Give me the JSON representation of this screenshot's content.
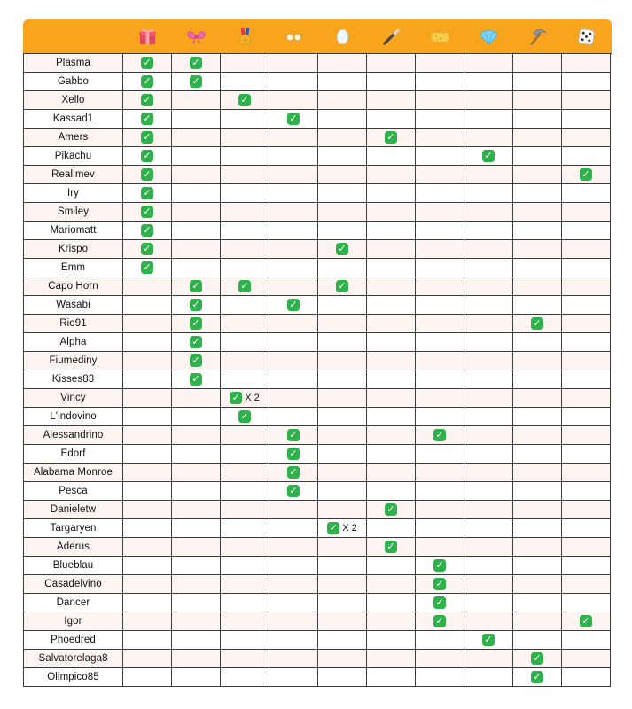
{
  "table": {
    "colors": {
      "header": "#F8A41D",
      "check": "#2FB14C",
      "row_alt": "#FCF4F1",
      "border": "#3C3C3C"
    },
    "multiplier_label": "X 2",
    "columns": [
      {
        "icon": "gift-icon"
      },
      {
        "icon": "bow-icon"
      },
      {
        "icon": "medal-icon"
      },
      {
        "icon": "goggles-icon"
      },
      {
        "icon": "white-gem-icon"
      },
      {
        "icon": "magic-wand-icon"
      },
      {
        "icon": "sponge-icon"
      },
      {
        "icon": "diamond-icon"
      },
      {
        "icon": "pickaxe-icon"
      },
      {
        "icon": "dice-icon"
      }
    ],
    "rows": [
      {
        "name": "Plasma",
        "checks": [
          1,
          1,
          0,
          0,
          0,
          0,
          0,
          0,
          0,
          0
        ]
      },
      {
        "name": "Gabbo",
        "checks": [
          1,
          1,
          0,
          0,
          0,
          0,
          0,
          0,
          0,
          0
        ]
      },
      {
        "name": "Xello",
        "checks": [
          1,
          0,
          1,
          0,
          0,
          0,
          0,
          0,
          0,
          0
        ]
      },
      {
        "name": "Kassad1",
        "checks": [
          1,
          0,
          0,
          1,
          0,
          0,
          0,
          0,
          0,
          0
        ]
      },
      {
        "name": "Amers",
        "checks": [
          1,
          0,
          0,
          0,
          0,
          1,
          0,
          0,
          0,
          0
        ]
      },
      {
        "name": "Pikachu",
        "checks": [
          1,
          0,
          0,
          0,
          0,
          0,
          0,
          1,
          0,
          0
        ]
      },
      {
        "name": "Realimev",
        "checks": [
          1,
          0,
          0,
          0,
          0,
          0,
          0,
          0,
          0,
          1
        ]
      },
      {
        "name": "Iry",
        "checks": [
          1,
          0,
          0,
          0,
          0,
          0,
          0,
          0,
          0,
          0
        ]
      },
      {
        "name": "Smiley",
        "checks": [
          1,
          0,
          0,
          0,
          0,
          0,
          0,
          0,
          0,
          0
        ]
      },
      {
        "name": "Mariomatt",
        "checks": [
          1,
          0,
          0,
          0,
          0,
          0,
          0,
          0,
          0,
          0
        ]
      },
      {
        "name": "Krispo",
        "checks": [
          1,
          0,
          0,
          0,
          1,
          0,
          0,
          0,
          0,
          0
        ]
      },
      {
        "name": "Emm",
        "checks": [
          1,
          0,
          0,
          0,
          0,
          0,
          0,
          0,
          0,
          0
        ]
      },
      {
        "name": "Capo Horn",
        "checks": [
          0,
          1,
          1,
          0,
          1,
          0,
          0,
          0,
          0,
          0
        ]
      },
      {
        "name": "Wasabi",
        "checks": [
          0,
          1,
          0,
          1,
          0,
          0,
          0,
          0,
          0,
          0
        ]
      },
      {
        "name": "Rio91",
        "checks": [
          0,
          1,
          0,
          0,
          0,
          0,
          0,
          0,
          1,
          0
        ]
      },
      {
        "name": "Alpha",
        "checks": [
          0,
          1,
          0,
          0,
          0,
          0,
          0,
          0,
          0,
          0
        ]
      },
      {
        "name": "Fiumediny",
        "checks": [
          0,
          1,
          0,
          0,
          0,
          0,
          0,
          0,
          0,
          0
        ]
      },
      {
        "name": "Kisses83",
        "checks": [
          0,
          1,
          0,
          0,
          0,
          0,
          0,
          0,
          0,
          0
        ]
      },
      {
        "name": "Vincy",
        "checks": [
          0,
          0,
          2,
          0,
          0,
          0,
          0,
          0,
          0,
          0
        ]
      },
      {
        "name": "L'indovino",
        "checks": [
          0,
          0,
          1,
          0,
          0,
          0,
          0,
          0,
          0,
          0
        ]
      },
      {
        "name": "Alessandrino",
        "checks": [
          0,
          0,
          0,
          1,
          0,
          0,
          1,
          0,
          0,
          0
        ]
      },
      {
        "name": "Edorf",
        "checks": [
          0,
          0,
          0,
          1,
          0,
          0,
          0,
          0,
          0,
          0
        ]
      },
      {
        "name": "Alabama Monroe",
        "checks": [
          0,
          0,
          0,
          1,
          0,
          0,
          0,
          0,
          0,
          0
        ]
      },
      {
        "name": "Pesca",
        "checks": [
          0,
          0,
          0,
          1,
          0,
          0,
          0,
          0,
          0,
          0
        ]
      },
      {
        "name": "Danieletw",
        "checks": [
          0,
          0,
          0,
          0,
          0,
          1,
          0,
          0,
          0,
          0
        ]
      },
      {
        "name": "Targaryen",
        "checks": [
          0,
          0,
          0,
          0,
          2,
          0,
          0,
          0,
          0,
          0
        ]
      },
      {
        "name": "Aderus",
        "checks": [
          0,
          0,
          0,
          0,
          0,
          1,
          0,
          0,
          0,
          0
        ]
      },
      {
        "name": "Blueblau",
        "checks": [
          0,
          0,
          0,
          0,
          0,
          0,
          1,
          0,
          0,
          0
        ]
      },
      {
        "name": "Casadelvino",
        "checks": [
          0,
          0,
          0,
          0,
          0,
          0,
          1,
          0,
          0,
          0
        ]
      },
      {
        "name": "Dancer",
        "checks": [
          0,
          0,
          0,
          0,
          0,
          0,
          1,
          0,
          0,
          0
        ]
      },
      {
        "name": "Igor",
        "checks": [
          0,
          0,
          0,
          0,
          0,
          0,
          1,
          0,
          0,
          1
        ]
      },
      {
        "name": "Phoedred",
        "checks": [
          0,
          0,
          0,
          0,
          0,
          0,
          0,
          1,
          0,
          0
        ]
      },
      {
        "name": "Salvatorelaga8",
        "checks": [
          0,
          0,
          0,
          0,
          0,
          0,
          0,
          0,
          1,
          0
        ]
      },
      {
        "name": "Olimpico85",
        "checks": [
          0,
          0,
          0,
          0,
          0,
          0,
          0,
          0,
          1,
          0
        ]
      }
    ]
  }
}
